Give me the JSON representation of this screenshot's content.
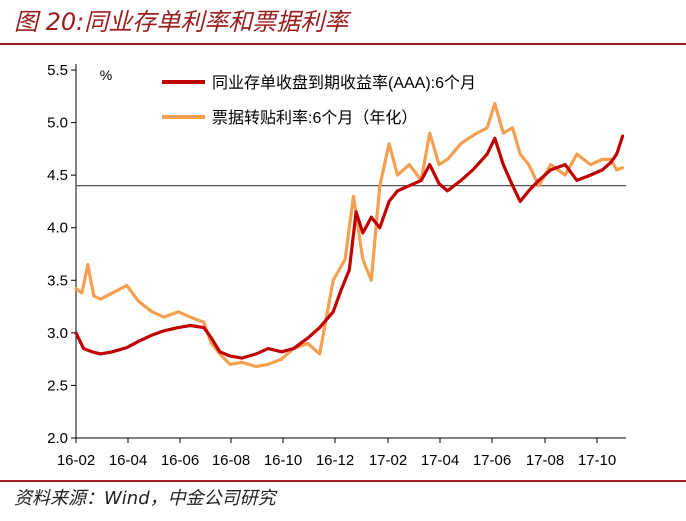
{
  "figure_title": "图 20:同业存单利率和票据利率",
  "source": "资料来源：Wind，中金公司研究",
  "chart_data": {
    "type": "line",
    "unit_label": "%",
    "ylim": [
      2.0,
      5.5
    ],
    "y_ticks": [
      "2.0",
      "2.5",
      "3.0",
      "3.5",
      "4.0",
      "4.5",
      "5.0",
      "5.5"
    ],
    "x_ticks": [
      "16-02",
      "16-04",
      "16-06",
      "16-08",
      "16-10",
      "16-12",
      "17-02",
      "17-04",
      "17-06",
      "17-08",
      "17-10"
    ],
    "reference_line": 4.4,
    "grid": false,
    "legend_position": "top",
    "series": [
      {
        "name": "同业存单收盘到期收益率(AAA):6个月",
        "color": "#c00000",
        "points": [
          [
            "2016-02-01",
            3.0
          ],
          [
            "2016-02-10",
            2.85
          ],
          [
            "2016-02-20",
            2.82
          ],
          [
            "2016-03-01",
            2.8
          ],
          [
            "2016-03-15",
            2.82
          ],
          [
            "2016-04-01",
            2.86
          ],
          [
            "2016-04-15",
            2.92
          ],
          [
            "2016-05-01",
            2.98
          ],
          [
            "2016-05-15",
            3.02
          ],
          [
            "2016-06-01",
            3.05
          ],
          [
            "2016-06-15",
            3.07
          ],
          [
            "2016-07-01",
            3.05
          ],
          [
            "2016-07-10",
            2.95
          ],
          [
            "2016-07-20",
            2.82
          ],
          [
            "2016-08-01",
            2.78
          ],
          [
            "2016-08-15",
            2.76
          ],
          [
            "2016-09-01",
            2.8
          ],
          [
            "2016-09-15",
            2.85
          ],
          [
            "2016-10-01",
            2.82
          ],
          [
            "2016-10-15",
            2.85
          ],
          [
            "2016-11-01",
            2.95
          ],
          [
            "2016-11-15",
            3.05
          ],
          [
            "2016-12-01",
            3.2
          ],
          [
            "2016-12-10",
            3.4
          ],
          [
            "2016-12-20",
            3.6
          ],
          [
            "2016-12-28",
            4.15
          ],
          [
            "2017-01-05",
            3.95
          ],
          [
            "2017-01-15",
            4.1
          ],
          [
            "2017-01-25",
            4.0
          ],
          [
            "2017-02-05",
            4.25
          ],
          [
            "2017-02-15",
            4.35
          ],
          [
            "2017-03-01",
            4.4
          ],
          [
            "2017-03-15",
            4.45
          ],
          [
            "2017-03-25",
            4.6
          ],
          [
            "2017-04-05",
            4.42
          ],
          [
            "2017-04-15",
            4.35
          ],
          [
            "2017-05-01",
            4.45
          ],
          [
            "2017-05-15",
            4.55
          ],
          [
            "2017-06-01",
            4.7
          ],
          [
            "2017-06-10",
            4.85
          ],
          [
            "2017-06-20",
            4.6
          ],
          [
            "2017-07-01",
            4.4
          ],
          [
            "2017-07-10",
            4.25
          ],
          [
            "2017-07-20",
            4.35
          ],
          [
            "2017-08-01",
            4.45
          ],
          [
            "2017-08-15",
            4.55
          ],
          [
            "2017-09-01",
            4.6
          ],
          [
            "2017-09-15",
            4.45
          ],
          [
            "2017-10-01",
            4.5
          ],
          [
            "2017-10-15",
            4.55
          ],
          [
            "2017-10-25",
            4.62
          ],
          [
            "2017-11-01",
            4.7
          ],
          [
            "2017-11-08",
            4.87
          ]
        ]
      },
      {
        "name": "票据转贴利率:6个月（年化）",
        "color": "#f4a050",
        "points": [
          [
            "2016-02-01",
            3.42
          ],
          [
            "2016-02-08",
            3.38
          ],
          [
            "2016-02-15",
            3.65
          ],
          [
            "2016-02-22",
            3.35
          ],
          [
            "2016-03-01",
            3.32
          ],
          [
            "2016-03-15",
            3.38
          ],
          [
            "2016-04-01",
            3.45
          ],
          [
            "2016-04-15",
            3.3
          ],
          [
            "2016-05-01",
            3.2
          ],
          [
            "2016-05-15",
            3.15
          ],
          [
            "2016-06-01",
            3.2
          ],
          [
            "2016-06-15",
            3.15
          ],
          [
            "2016-07-01",
            3.1
          ],
          [
            "2016-07-10",
            2.9
          ],
          [
            "2016-07-20",
            2.8
          ],
          [
            "2016-08-01",
            2.7
          ],
          [
            "2016-08-15",
            2.72
          ],
          [
            "2016-09-01",
            2.68
          ],
          [
            "2016-09-15",
            2.7
          ],
          [
            "2016-10-01",
            2.75
          ],
          [
            "2016-10-15",
            2.85
          ],
          [
            "2016-11-01",
            2.9
          ],
          [
            "2016-11-15",
            2.8
          ],
          [
            "2016-12-01",
            3.5
          ],
          [
            "2016-12-15",
            3.7
          ],
          [
            "2016-12-25",
            4.3
          ],
          [
            "2017-01-05",
            3.7
          ],
          [
            "2017-01-15",
            3.5
          ],
          [
            "2017-01-25",
            4.4
          ],
          [
            "2017-02-05",
            4.8
          ],
          [
            "2017-02-15",
            4.5
          ],
          [
            "2017-03-01",
            4.6
          ],
          [
            "2017-03-15",
            4.45
          ],
          [
            "2017-03-25",
            4.9
          ],
          [
            "2017-04-05",
            4.6
          ],
          [
            "2017-04-15",
            4.65
          ],
          [
            "2017-05-01",
            4.8
          ],
          [
            "2017-05-10",
            4.85
          ],
          [
            "2017-05-20",
            4.9
          ],
          [
            "2017-06-01",
            4.95
          ],
          [
            "2017-06-10",
            5.18
          ],
          [
            "2017-06-20",
            4.9
          ],
          [
            "2017-07-01",
            4.95
          ],
          [
            "2017-07-10",
            4.7
          ],
          [
            "2017-07-20",
            4.6
          ],
          [
            "2017-08-01",
            4.4
          ],
          [
            "2017-08-15",
            4.6
          ],
          [
            "2017-09-01",
            4.5
          ],
          [
            "2017-09-15",
            4.7
          ],
          [
            "2017-10-01",
            4.6
          ],
          [
            "2017-10-15",
            4.65
          ],
          [
            "2017-10-25",
            4.65
          ],
          [
            "2017-11-01",
            4.55
          ],
          [
            "2017-11-08",
            4.57
          ]
        ]
      }
    ]
  }
}
